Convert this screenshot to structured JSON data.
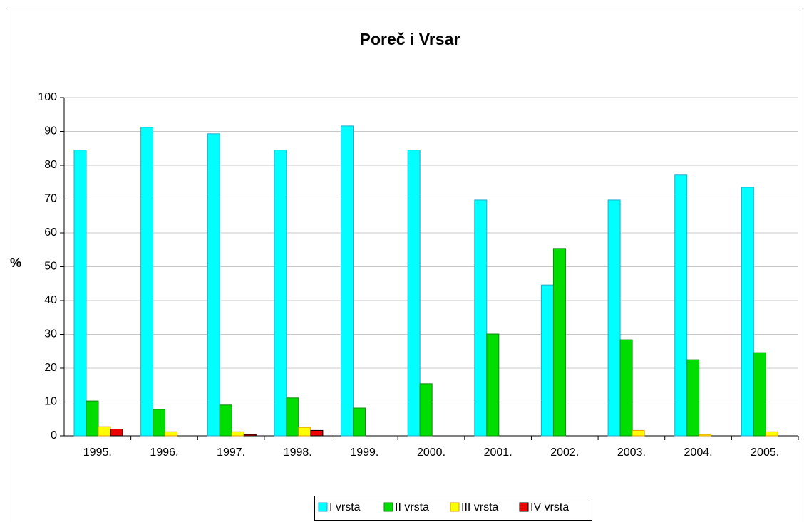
{
  "chart_data": {
    "type": "bar",
    "title": "Poreč i Vrsar",
    "y_label": "%",
    "categories": [
      "1995.",
      "1996.",
      "1997.",
      "1998.",
      "1999.",
      "2000.",
      "2001.",
      "2002.",
      "2003.",
      "2004.",
      "2005."
    ],
    "series": [
      {
        "name": "I vrsta",
        "color": "#00ffff",
        "values": [
          84.5,
          91.2,
          89.3,
          84.5,
          91.6,
          84.5,
          69.7,
          44.6,
          69.7,
          77.1,
          73.5
        ]
      },
      {
        "name": "II vrsta",
        "color": "#00dd00",
        "values": [
          10.3,
          7.8,
          9.1,
          11.2,
          8.2,
          15.4,
          30.1,
          55.4,
          28.4,
          22.5,
          24.6
        ]
      },
      {
        "name": "III vrsta",
        "color": "#ffff00",
        "values": [
          2.7,
          1.2,
          1.2,
          2.5,
          0,
          0,
          0,
          0,
          1.6,
          0.4,
          1.2
        ]
      },
      {
        "name": "IV vrsta",
        "color": "#ee0000",
        "values": [
          2.0,
          0,
          0.4,
          1.6,
          0,
          0,
          0,
          0,
          0,
          0,
          0
        ]
      }
    ],
    "ylim": [
      0,
      100
    ],
    "yticks": [
      0,
      10,
      20,
      30,
      40,
      50,
      60,
      70,
      80,
      90,
      100
    ],
    "grid": true,
    "legend": "bottom"
  }
}
